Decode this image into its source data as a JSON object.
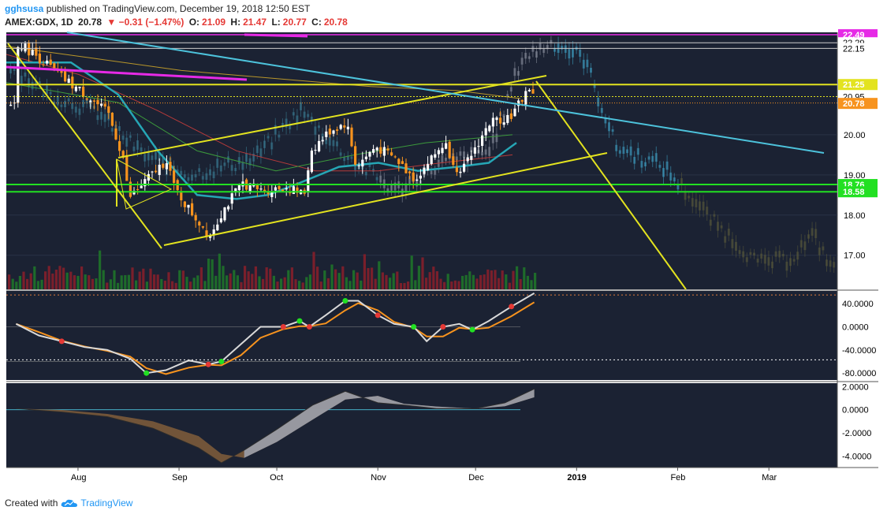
{
  "header": {
    "user": "gghsusa",
    "published": "published on TradingView.com, December 19, 2018 12:50 EST",
    "symbol": "AMEX:GDX, 1D",
    "last": "20.78",
    "change": "▼ −0.31 (−1.47%)",
    "open_label": "O:",
    "open": "21.09",
    "high_label": "H:",
    "high": "21.47",
    "low_label": "L:",
    "low": "20.77",
    "close_label": "C:",
    "close": "20.78"
  },
  "footer": {
    "created_with": "Created with",
    "brand": "TradingView"
  },
  "colors": {
    "background": "#1b2233",
    "up": "#ffffff",
    "down": "#f7931e",
    "trend": "#e3e31f",
    "cyan": "#4dc3dc",
    "magenta": "#e62ae6",
    "green_level": "#22e022",
    "ma_teal": "#26a6b5"
  },
  "chart_data": [
    {
      "type": "candlestick",
      "symbol": "AMEX:GDX",
      "interval": "1D",
      "x_ticks": [
        "Aug",
        "Sep",
        "Oct",
        "Nov",
        "Dec",
        "2019",
        "Feb",
        "Mar"
      ],
      "y_ticks": [
        "20.00",
        "19.00",
        "18.00",
        "17.00"
      ],
      "price_labels": [
        {
          "value": "22.49",
          "color": "#e62ae6"
        },
        {
          "value": "22.29",
          "color": "#ffffff"
        },
        {
          "value": "22.15",
          "color": "#ffffff"
        },
        {
          "value": "21.25",
          "color": "#e3e31f"
        },
        {
          "value": "20.95",
          "color": "#ffffff"
        },
        {
          "value": "20.78",
          "color": "#f7931e"
        },
        {
          "value": "18.76",
          "color": "#22e022"
        },
        {
          "value": "18.58",
          "color": "#22e022"
        }
      ],
      "ylim": [
        16.15,
        22.55
      ],
      "close_path": [
        [
          "Jul 13",
          22.3
        ],
        [
          "Jul 20",
          21.9
        ],
        [
          "Jul 27",
          21.4
        ],
        [
          "Aug 3",
          21.0
        ],
        [
          "Aug 10",
          20.5
        ],
        [
          "Aug 15",
          19.3
        ],
        [
          "Aug 16",
          18.4
        ],
        [
          "Aug 22",
          18.9
        ],
        [
          "Aug 28",
          19.4
        ],
        [
          "Aug 30",
          18.7
        ],
        [
          "Sep 4",
          18.1
        ],
        [
          "Sep 10",
          17.5
        ],
        [
          "Sep 14",
          18.1
        ],
        [
          "Sep 20",
          18.8
        ],
        [
          "Sep 26",
          18.6
        ],
        [
          "Oct 3",
          18.7
        ],
        [
          "Oct 9",
          18.5
        ],
        [
          "Oct 11",
          19.6
        ],
        [
          "Oct 17",
          20.1
        ],
        [
          "Oct 22",
          20.3
        ],
        [
          "Oct 25",
          19.2
        ],
        [
          "Oct 31",
          19.7
        ],
        [
          "Nov 6",
          19.4
        ],
        [
          "Nov 12",
          18.9
        ],
        [
          "Nov 16",
          19.3
        ],
        [
          "Nov 21",
          19.8
        ],
        [
          "Nov 26",
          19.0
        ],
        [
          "Nov 30",
          19.6
        ],
        [
          "Dec 5",
          20.3
        ],
        [
          "Dec 12",
          20.5
        ],
        [
          "Dec 17",
          21.2
        ],
        [
          "Dec 19",
          20.78
        ]
      ],
      "levels": [
        22.49,
        22.29,
        22.15,
        21.25,
        20.95,
        18.76,
        18.58
      ]
    },
    {
      "type": "line",
      "panel": "oscillator",
      "y_ticks": [
        "40.0000",
        "0.0000",
        "-40.0000",
        "-80.0000"
      ],
      "ylim": [
        -92,
        62
      ],
      "overbought": 55,
      "oversold": -57,
      "series": [
        {
          "points": [
            [
              "Jul 13",
              5
            ],
            [
              "Jul 20",
              -15
            ],
            [
              "Jul 27",
              -25
            ],
            [
              "Aug 3",
              -35
            ],
            [
              "Aug 10",
              -40
            ],
            [
              "Aug 17",
              -55
            ],
            [
              "Aug 22",
              -80
            ],
            [
              "Aug 28",
              -75
            ],
            [
              "Sep 4",
              -58
            ],
            [
              "Sep 10",
              -65
            ],
            [
              "Sep 14",
              -60
            ],
            [
              "Sep 20",
              -30
            ],
            [
              "Sep 26",
              0
            ],
            [
              "Oct 3",
              0
            ],
            [
              "Oct 8",
              10
            ],
            [
              "Oct 11",
              0
            ],
            [
              "Oct 16",
              20
            ],
            [
              "Oct 22",
              45
            ],
            [
              "Oct 26",
              45
            ],
            [
              "Nov 1",
              20
            ],
            [
              "Nov 6",
              5
            ],
            [
              "Nov 12",
              0
            ],
            [
              "Nov 16",
              -25
            ],
            [
              "Nov 21",
              0
            ],
            [
              "Nov 26",
              5
            ],
            [
              "Nov 30",
              -5
            ],
            [
              "Dec 5",
              10
            ],
            [
              "Dec 12",
              35
            ],
            [
              "Dec 19",
              58
            ]
          ]
        }
      ]
    },
    {
      "type": "area",
      "panel": "macd",
      "y_ticks": [
        "2.0000",
        "0.0000",
        "-2.0000",
        "-4.0000"
      ],
      "ylim": [
        -5.0,
        2.3
      ],
      "series": [
        {
          "points": [
            [
              "Jul 13",
              0.1
            ],
            [
              "Jul 27",
              -0.2
            ],
            [
              "Aug 10",
              -0.6
            ],
            [
              "Aug 24",
              -1.6
            ],
            [
              "Sep 7",
              -3.3
            ],
            [
              "Sep 14",
              -4.6
            ],
            [
              "Sep 21",
              -3.5
            ],
            [
              "Oct 1",
              -1.7
            ],
            [
              "Oct 12",
              0.4
            ],
            [
              "Oct 22",
              1.6
            ],
            [
              "Nov 1",
              0.6
            ],
            [
              "Nov 9",
              0.4
            ],
            [
              "Nov 19",
              0.1
            ],
            [
              "Dec 1",
              0.1
            ],
            [
              "Dec 10",
              0.6
            ],
            [
              "Dec 19",
              1.8
            ]
          ]
        }
      ]
    }
  ]
}
